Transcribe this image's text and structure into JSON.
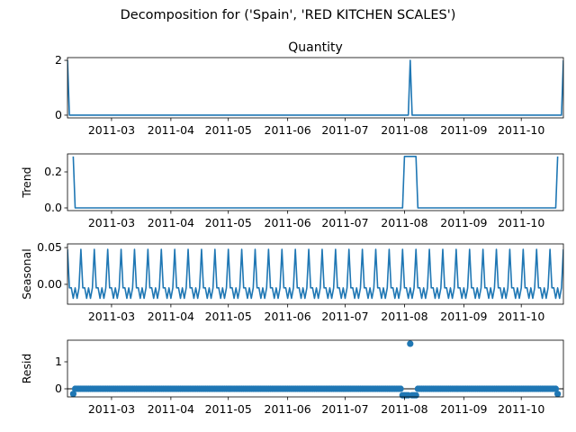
{
  "figure": {
    "suptitle": "Decomposition for ('Spain', 'RED KITCHEN SCALES')"
  },
  "colors": {
    "line": "#1f77b4",
    "axis": "#000000",
    "background": "#ffffff"
  },
  "chart_data": [
    {
      "type": "line",
      "title": "Quantity",
      "ylabel": "",
      "ylim": [
        -0.1,
        2.1
      ],
      "yticks": [
        0,
        2
      ],
      "xticks": [
        "2011-03",
        "2011-04",
        "2011-05",
        "2011-06",
        "2011-07",
        "2011-08",
        "2011-09",
        "2011-10"
      ],
      "x_range": [
        "2011-02-06",
        "2011-10-23"
      ],
      "series": [
        {
          "points": [
            [
              "2011-02-06",
              2
            ],
            [
              "2011-02-07",
              0
            ],
            [
              "2011-08-03",
              0
            ],
            [
              "2011-08-04",
              2
            ],
            [
              "2011-08-05",
              0
            ],
            [
              "2011-10-22",
              0
            ],
            [
              "2011-10-23",
              2
            ]
          ]
        }
      ]
    },
    {
      "type": "line",
      "title": "",
      "ylabel": "Trend",
      "ylim": [
        -0.015,
        0.3
      ],
      "yticks": [
        0.0,
        0.2
      ],
      "xticks": [
        "2011-03",
        "2011-04",
        "2011-05",
        "2011-06",
        "2011-07",
        "2011-08",
        "2011-09",
        "2011-10"
      ],
      "x_range": [
        "2011-02-06",
        "2011-10-23"
      ],
      "series": [
        {
          "points": [
            [
              "2011-02-09",
              0.2857
            ],
            [
              "2011-02-10",
              0
            ],
            [
              "2011-07-31",
              0
            ],
            [
              "2011-08-01",
              0.2857
            ],
            [
              "2011-08-07",
              0.2857
            ],
            [
              "2011-08-08",
              0
            ],
            [
              "2011-10-19",
              0
            ],
            [
              "2011-10-20",
              0.2857
            ]
          ]
        }
      ]
    },
    {
      "type": "line",
      "title": "",
      "ylabel": "Seasonal",
      "ylim": [
        -0.027,
        0.055
      ],
      "yticks": [
        0.0,
        0.05
      ],
      "xticks": [
        "2011-03",
        "2011-04",
        "2011-05",
        "2011-06",
        "2011-07",
        "2011-08",
        "2011-09",
        "2011-10"
      ],
      "x_range": [
        "2011-02-06",
        "2011-10-23"
      ],
      "seasonal_pattern": {
        "start": "2011-02-06",
        "period_days": 7,
        "values": [
          0.0476,
          -0.0048,
          -0.0048,
          -0.019,
          -0.0048,
          -0.019,
          -0.0048
        ]
      }
    },
    {
      "type": "scatter",
      "title": "",
      "ylabel": "Resid",
      "ylim": [
        -0.3,
        1.8
      ],
      "yticks": [
        0,
        1
      ],
      "xticks": [
        "2011-03",
        "2011-04",
        "2011-05",
        "2011-06",
        "2011-07",
        "2011-08",
        "2011-09",
        "2011-10"
      ],
      "x_range": [
        "2011-02-06",
        "2011-10-23"
      ],
      "baseline": 0,
      "residual_range": [
        "2011-02-09",
        "2011-10-20"
      ],
      "points": [
        [
          "2011-02-09",
          -0.19
        ],
        [
          "2011-07-31",
          -0.24
        ],
        [
          "2011-08-01",
          -0.24
        ],
        [
          "2011-08-02",
          -0.24
        ],
        [
          "2011-08-03",
          -0.24
        ],
        [
          "2011-08-04",
          1.67
        ],
        [
          "2011-08-05",
          -0.24
        ],
        [
          "2011-08-06",
          -0.24
        ],
        [
          "2011-08-07",
          -0.24
        ],
        [
          "2011-10-20",
          -0.19
        ]
      ]
    }
  ]
}
